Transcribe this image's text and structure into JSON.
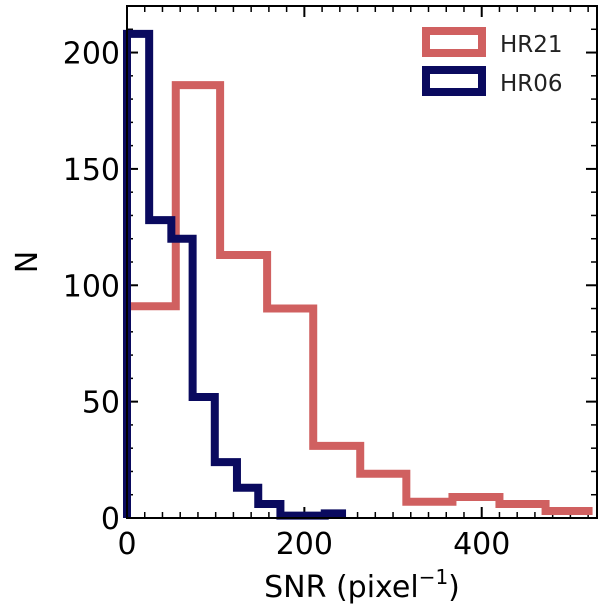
{
  "chart_data": {
    "type": "histogram",
    "xlabel": "SNR (pixel",
    "xlabel_sup": "−1",
    "xlabel_close": ")",
    "ylabel": "N",
    "xlim": [
      0,
      530
    ],
    "ylim": [
      0,
      220
    ],
    "xticks": [
      0,
      200,
      400
    ],
    "yticks": [
      0,
      50,
      100,
      150,
      200
    ],
    "legend_position": "upper right",
    "series": [
      {
        "name": "HR21",
        "color": "#d06060",
        "bins": [
          0,
          55,
          105,
          158,
          210,
          263,
          315,
          367,
          420,
          472,
          525
        ],
        "counts": [
          91,
          186,
          113,
          90,
          31,
          19,
          7,
          9,
          6,
          3
        ]
      },
      {
        "name": "HR06",
        "color": "#0a0a5f",
        "bins": [
          0,
          25,
          50,
          74,
          99,
          124,
          148,
          173,
          198,
          223,
          247
        ],
        "counts": [
          208,
          128,
          120,
          52,
          24,
          13,
          6,
          1,
          1,
          2
        ]
      }
    ]
  }
}
